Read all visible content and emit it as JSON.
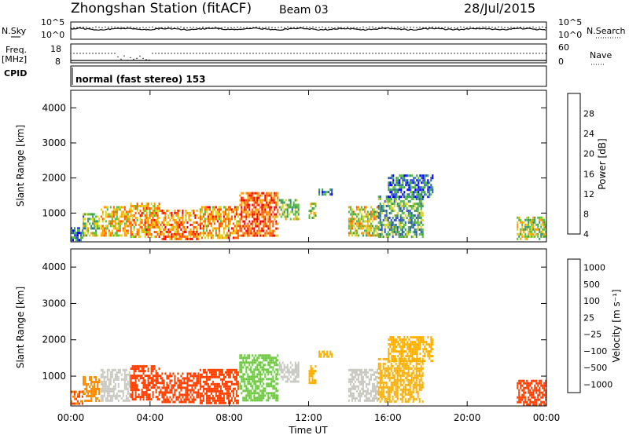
{
  "header": {
    "station": "Zhongshan Station (fitACF)",
    "beam": "Beam 03",
    "date": "28/Jul/2015",
    "cpid_text": "normal (fast stereo) 153"
  },
  "left_labels": {
    "nsky": "N.Sky",
    "freq_top": "Freq.",
    "freq_unit": "[MHz]",
    "cpid": "CPID"
  },
  "right_labels": {
    "nsearch": "N.Search",
    "nave": "Nave"
  },
  "chart_data": [
    {
      "type": "line",
      "name": "noise",
      "ylabel_left": "N.Sky",
      "ylabel_right": "N.Search",
      "left_ticks": [
        "10^5",
        "10^0"
      ],
      "right_ticks": [
        "10^5",
        "10^0"
      ],
      "x_range_hours": [
        0,
        24
      ]
    },
    {
      "type": "line",
      "name": "frequency_nave",
      "ylabel_left": "Freq. [MHz]",
      "ylabel_right": "Nave",
      "left_ticks": [
        "18",
        "8"
      ],
      "right_ticks": [
        "60",
        "0"
      ],
      "x_range_hours": [
        0,
        24
      ]
    },
    {
      "type": "heatmap",
      "name": "power",
      "ylabel": "Slant Range [km]",
      "y_ticks": [
        "4000",
        "3000",
        "2000",
        "1000"
      ],
      "ylim": [
        180,
        4500
      ],
      "colorbar_label": "Power [dB]",
      "colorbar_ticks": [
        "28",
        "24",
        "20",
        "16",
        "12",
        "8",
        "4"
      ],
      "colorbar_range": [
        0,
        32
      ],
      "colors": [
        "#0000ff",
        "#2f55c8",
        "#3a9a5e",
        "#54c03a",
        "#e0d020",
        "#ff9a00",
        "#ff5a00",
        "#ff0000"
      ],
      "regions": [
        {
          "h0": 0.0,
          "h1": 0.6,
          "r0": 200,
          "r1": 600,
          "v": 8
        },
        {
          "h0": 0.6,
          "h1": 1.5,
          "r0": 300,
          "r1": 1000,
          "v": 14
        },
        {
          "h0": 1.5,
          "h1": 3.0,
          "r0": 300,
          "r1": 1200,
          "v": 20
        },
        {
          "h0": 3.0,
          "h1": 4.5,
          "r0": 300,
          "r1": 1300,
          "v": 22
        },
        {
          "h0": 4.5,
          "h1": 6.5,
          "r0": 250,
          "r1": 1100,
          "v": 24
        },
        {
          "h0": 6.5,
          "h1": 8.5,
          "r0": 250,
          "r1": 1200,
          "v": 22
        },
        {
          "h0": 8.5,
          "h1": 10.5,
          "r0": 300,
          "r1": 1600,
          "v": 26
        },
        {
          "h0": 10.5,
          "h1": 11.5,
          "r0": 800,
          "r1": 1400,
          "v": 14
        },
        {
          "h0": 12.0,
          "h1": 12.4,
          "r0": 800,
          "r1": 1300,
          "v": 16
        },
        {
          "h0": 12.5,
          "h1": 13.2,
          "r0": 1500,
          "r1": 1700,
          "v": 8
        },
        {
          "h0": 14.0,
          "h1": 15.5,
          "r0": 300,
          "r1": 1200,
          "v": 18
        },
        {
          "h0": 15.5,
          "h1": 17.8,
          "r0": 300,
          "r1": 1500,
          "v": 12
        },
        {
          "h0": 16.0,
          "h1": 18.3,
          "r0": 1400,
          "r1": 2100,
          "v": 8
        },
        {
          "h0": 22.5,
          "h1": 24.0,
          "r0": 200,
          "r1": 900,
          "v": 16
        }
      ]
    },
    {
      "type": "heatmap",
      "name": "velocity",
      "ylabel": "Slant Range [km]",
      "y_ticks": [
        "4000",
        "3000",
        "2000",
        "1000"
      ],
      "ylim": [
        180,
        4500
      ],
      "colorbar_label": "Velocity [m s⁻¹]",
      "colorbar_ticks": [
        "1000",
        "500",
        "100",
        "25",
        "−25",
        "−100",
        "−500",
        "−1000"
      ],
      "colors": [
        "#ff0000",
        "#ff4000",
        "#ff8c00",
        "#ffb000",
        "#c8c8c0",
        "#6ccb3c",
        "#3a9a5e",
        "#2f55c8"
      ],
      "regions": [
        {
          "h0": 0.0,
          "h1": 0.6,
          "r0": 200,
          "r1": 600,
          "v": -100
        },
        {
          "h0": 0.6,
          "h1": 1.5,
          "r0": 300,
          "r1": 1000,
          "v": -80
        },
        {
          "h0": 1.5,
          "h1": 3.0,
          "r0": 300,
          "r1": 1200,
          "v": 60
        },
        {
          "h0": 3.0,
          "h1": 4.5,
          "r0": 300,
          "r1": 1300,
          "v": -200
        },
        {
          "h0": 4.5,
          "h1": 6.5,
          "r0": 250,
          "r1": 1100,
          "v": -150
        },
        {
          "h0": 6.5,
          "h1": 8.5,
          "r0": 250,
          "r1": 1200,
          "v": -300
        },
        {
          "h0": 8.5,
          "h1": 10.5,
          "r0": 300,
          "r1": 1600,
          "v": 120
        },
        {
          "h0": 10.5,
          "h1": 11.5,
          "r0": 800,
          "r1": 1400,
          "v": 40
        },
        {
          "h0": 12.0,
          "h1": 12.4,
          "r0": 800,
          "r1": 1300,
          "v": 10
        },
        {
          "h0": 12.5,
          "h1": 13.2,
          "r0": 1500,
          "r1": 1700,
          "v": 0
        },
        {
          "h0": 14.0,
          "h1": 15.5,
          "r0": 300,
          "r1": 1200,
          "v": 80
        },
        {
          "h0": 15.5,
          "h1": 17.8,
          "r0": 300,
          "r1": 1500,
          "v": 0
        },
        {
          "h0": 16.0,
          "h1": 18.3,
          "r0": 1400,
          "r1": 2100,
          "v": 0
        },
        {
          "h0": 22.5,
          "h1": 24.0,
          "r0": 200,
          "r1": 900,
          "v": -200
        }
      ]
    }
  ],
  "x_axis": {
    "label": "Time UT",
    "ticks": [
      "00:00",
      "04:00",
      "08:00",
      "12:00",
      "16:00",
      "20:00",
      "00:00"
    ],
    "range_hours": [
      0,
      24
    ]
  }
}
